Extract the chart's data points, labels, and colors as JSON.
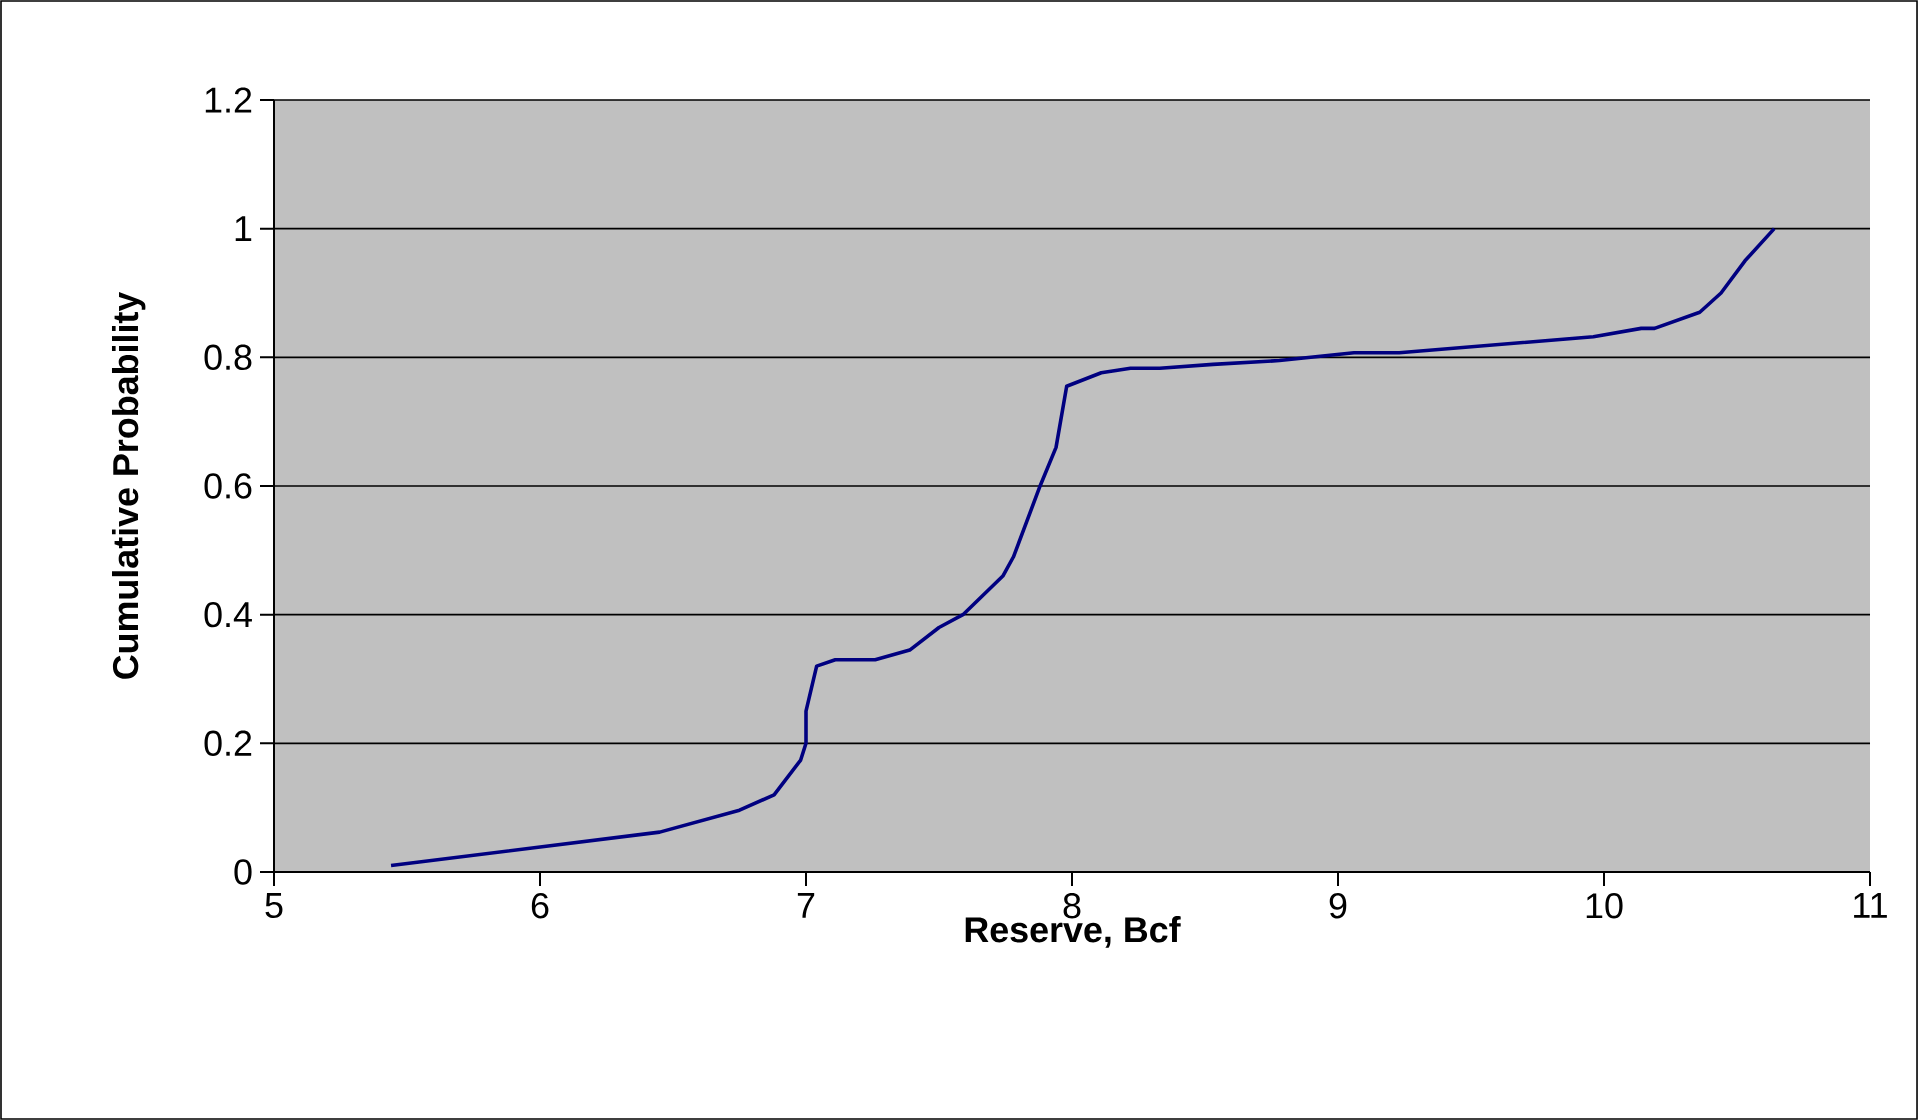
{
  "chart_data": {
    "type": "line",
    "xlabel": "Reserve, Bcf",
    "ylabel": "Cumulative Probability",
    "xlim": [
      5,
      11
    ],
    "xticks": [
      5,
      6,
      7,
      8,
      9,
      10,
      11
    ],
    "ylim": [
      0,
      1.2
    ],
    "yticks": [
      0,
      0.2,
      0.4,
      0.6,
      0.8,
      1,
      1.2
    ],
    "grid": "y",
    "marker": "none",
    "line_style": "solid",
    "series": [
      {
        "color": "#000080",
        "x": [
          5.44,
          6.45,
          6.75,
          6.88,
          6.98,
          7.0,
          7.0,
          7.04,
          7.11,
          7.26,
          7.39,
          7.5,
          7.59,
          7.74,
          7.78,
          7.88,
          7.94,
          7.98,
          8.11,
          8.22,
          8.33,
          8.53,
          8.78,
          9.06,
          9.23,
          9.96,
          10.14,
          10.19,
          10.36,
          10.44,
          10.53,
          10.64
        ],
        "values": [
          0.01,
          0.062,
          0.096,
          0.12,
          0.174,
          0.2,
          0.25,
          0.32,
          0.33,
          0.33,
          0.345,
          0.38,
          0.4,
          0.46,
          0.49,
          0.6,
          0.66,
          0.755,
          0.776,
          0.783,
          0.783,
          0.789,
          0.795,
          0.807,
          0.807,
          0.832,
          0.845,
          0.845,
          0.87,
          0.9,
          0.95,
          1.0
        ]
      }
    ]
  }
}
